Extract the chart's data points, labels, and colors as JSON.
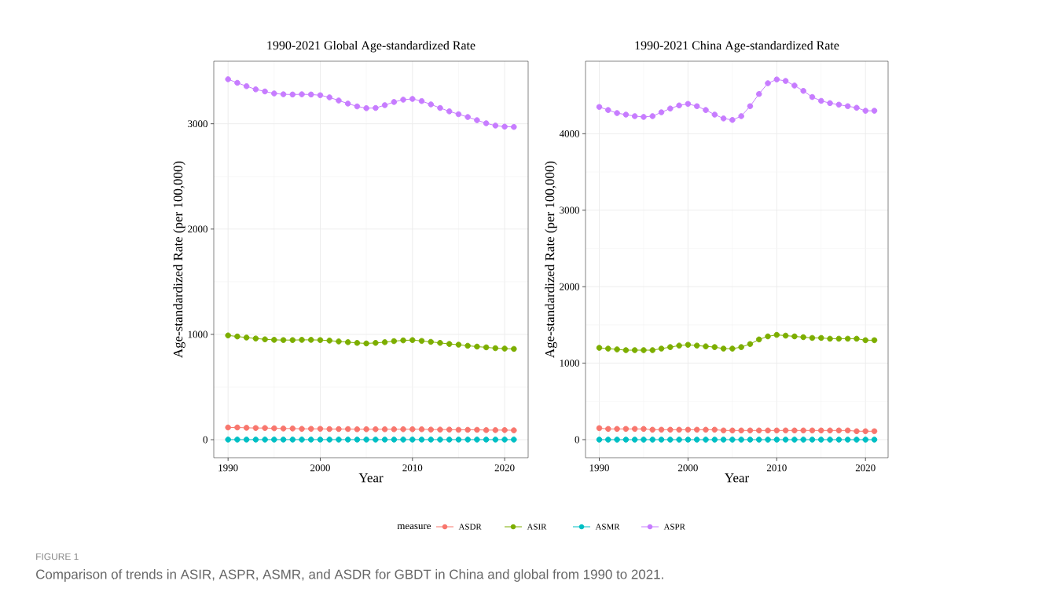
{
  "chart_data": [
    {
      "type": "line",
      "title": "1990-2021 Global Age-standardized Rate",
      "xlabel": "Year",
      "ylabel": "Age-standardized Rate (per 100,000)",
      "x": [
        1990,
        1991,
        1992,
        1993,
        1994,
        1995,
        1996,
        1997,
        1998,
        1999,
        2000,
        2001,
        2002,
        2003,
        2004,
        2005,
        2006,
        2007,
        2008,
        2009,
        2010,
        2011,
        2012,
        2013,
        2014,
        2015,
        2016,
        2017,
        2018,
        2019,
        2020,
        2021
      ],
      "xlim": [
        1988.45,
        2022.55
      ],
      "ylim": [
        -171,
        3594
      ],
      "xticks": [
        1990,
        2000,
        2010,
        2020
      ],
      "yticks": [
        0,
        1000,
        2000,
        3000
      ],
      "grid": true,
      "marker": "circle",
      "legend": "bottom",
      "legend_title": "measure",
      "annotations": [
        "FIGURE 1",
        "Comparison of trends in ASIR, ASPR, ASMR, and ASDR for GBDT in China and global from 1990 to 2021."
      ],
      "series": [
        {
          "name": "ASDR",
          "color": "#f8766d",
          "values": [
            116,
            116,
            113,
            111,
            111,
            108,
            106,
            106,
            103,
            103,
            103,
            101,
            101,
            101,
            99,
            99,
            99,
            99,
            99,
            99,
            99,
            99,
            96,
            96,
            96,
            94,
            94,
            94,
            91,
            91,
            91,
            89
          ]
        },
        {
          "name": "ASIR",
          "color": "#7cae00",
          "values": [
            990,
            980,
            970,
            961,
            953,
            948,
            946,
            946,
            948,
            948,
            946,
            941,
            933,
            926,
            919,
            914,
            919,
            926,
            936,
            943,
            946,
            938,
            929,
            919,
            909,
            902,
            892,
            884,
            877,
            869,
            865,
            862
          ]
        },
        {
          "name": "ASMR",
          "color": "#00bfc4",
          "values": [
            1,
            1,
            1,
            1,
            1,
            1,
            1,
            1,
            1,
            1,
            1,
            1,
            1,
            1,
            1,
            1,
            1,
            1,
            1,
            1,
            1,
            1,
            1,
            1,
            1,
            1,
            1,
            1,
            1,
            1,
            1,
            1
          ]
        },
        {
          "name": "ASPR",
          "color": "#c77cff",
          "values": [
            3423,
            3389,
            3357,
            3327,
            3307,
            3288,
            3280,
            3278,
            3280,
            3278,
            3271,
            3251,
            3221,
            3192,
            3165,
            3148,
            3150,
            3177,
            3207,
            3229,
            3236,
            3216,
            3184,
            3150,
            3118,
            3091,
            3064,
            3034,
            3005,
            2983,
            2973,
            2970
          ]
        }
      ]
    },
    {
      "type": "line",
      "title": "1990-2021 China Age-standardized Rate",
      "xlabel": "Year",
      "ylabel": "Age-standardized Rate (per 100,000)",
      "x": [
        1990,
        1991,
        1992,
        1993,
        1994,
        1995,
        1996,
        1997,
        1998,
        1999,
        2000,
        2001,
        2002,
        2003,
        2004,
        2005,
        2006,
        2007,
        2008,
        2009,
        2010,
        2011,
        2012,
        2013,
        2014,
        2015,
        2016,
        2017,
        2018,
        2019,
        2020,
        2021
      ],
      "xlim": [
        1988.45,
        2022.55
      ],
      "ylim": [
        -236,
        4948
      ],
      "xticks": [
        1990,
        2000,
        2010,
        2020
      ],
      "yticks": [
        0,
        1000,
        2000,
        3000,
        4000
      ],
      "grid": true,
      "marker": "circle",
      "series": [
        {
          "color": "#f8766d",
          "values": [
            150,
            140,
            140,
            140,
            140,
            140,
            130,
            130,
            130,
            130,
            130,
            130,
            130,
            130,
            120,
            120,
            120,
            120,
            120,
            120,
            120,
            120,
            120,
            120,
            120,
            120,
            120,
            120,
            120,
            110,
            110,
            110
          ]
        },
        {
          "color": "#7cae00",
          "values": [
            1200,
            1190,
            1180,
            1170,
            1170,
            1170,
            1170,
            1190,
            1210,
            1230,
            1240,
            1230,
            1220,
            1210,
            1190,
            1190,
            1210,
            1250,
            1310,
            1350,
            1370,
            1360,
            1350,
            1340,
            1330,
            1330,
            1320,
            1320,
            1320,
            1320,
            1300,
            1300
          ]
        },
        {
          "color": "#00bfc4",
          "values": [
            0,
            0,
            0,
            0,
            0,
            0,
            0,
            0,
            0,
            0,
            0,
            0,
            0,
            0,
            0,
            0,
            0,
            0,
            0,
            0,
            0,
            0,
            0,
            0,
            0,
            0,
            0,
            0,
            0,
            0,
            0,
            0
          ]
        },
        {
          "color": "#c77cff",
          "values": [
            4350,
            4310,
            4270,
            4250,
            4230,
            4220,
            4230,
            4280,
            4330,
            4370,
            4390,
            4360,
            4310,
            4250,
            4200,
            4180,
            4230,
            4360,
            4520,
            4660,
            4710,
            4690,
            4630,
            4560,
            4480,
            4430,
            4400,
            4380,
            4360,
            4340,
            4300,
            4300
          ]
        }
      ]
    }
  ]
}
